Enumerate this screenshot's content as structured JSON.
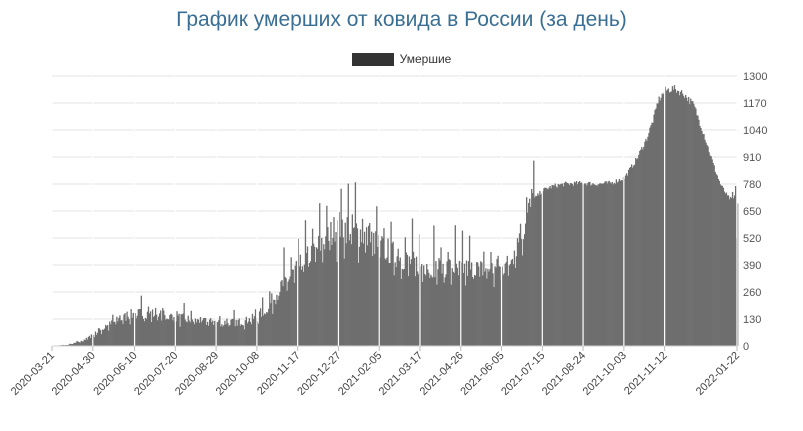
{
  "chart_data": {
    "type": "bar",
    "title": "График умерших от ковида в России (за день)",
    "series": [
      {
        "name": "Умершие",
        "color": "#6e6e6e",
        "legend_color": "#333333"
      }
    ],
    "ylim": [
      0,
      1300
    ],
    "yticks": [
      "1300",
      "1170",
      "1040",
      "910",
      "780",
      "650",
      "520",
      "390",
      "260",
      "130",
      "0"
    ],
    "yaxis_side": "right",
    "grid": true,
    "legend": "top-center",
    "x_range": [
      "2020-03-21",
      "2022-01-22"
    ],
    "xtick_labels": [
      "2020-03-21",
      "2020-04-30",
      "2020-06-10",
      "2020-07-20",
      "2020-08-29",
      "2020-10-08",
      "2020-11-17",
      "2020-12-27",
      "2021-02-05",
      "2021-03-17",
      "2021-04-26",
      "2021-06-05",
      "2021-07-15",
      "2021-08-24",
      "2021-10-03",
      "2021-11-12",
      "2022-01-22"
    ],
    "profile_dates": [
      "2020-03-21",
      "2020-04-05",
      "2020-04-20",
      "2020-05-05",
      "2020-05-20",
      "2020-06-05",
      "2020-06-20",
      "2020-07-10",
      "2020-07-25",
      "2020-08-10",
      "2020-08-25",
      "2020-09-10",
      "2020-09-25",
      "2020-10-08",
      "2020-10-20",
      "2020-11-01",
      "2020-11-17",
      "2020-12-01",
      "2020-12-15",
      "2020-12-27",
      "2021-01-05",
      "2021-01-15",
      "2021-01-25",
      "2021-02-05",
      "2021-02-20",
      "2021-03-05",
      "2021-03-17",
      "2021-04-01",
      "2021-04-15",
      "2021-04-26",
      "2021-05-10",
      "2021-05-25",
      "2021-06-05",
      "2021-06-12",
      "2021-06-20",
      "2021-06-28",
      "2021-07-05",
      "2021-07-15",
      "2021-07-25",
      "2021-08-05",
      "2021-08-24",
      "2021-09-05",
      "2021-09-20",
      "2021-10-03",
      "2021-10-15",
      "2021-10-25",
      "2021-11-01",
      "2021-11-05",
      "2021-11-12",
      "2021-11-20",
      "2021-11-30",
      "2021-12-10",
      "2021-12-20",
      "2021-12-30",
      "2022-01-05",
      "2022-01-12",
      "2022-01-17",
      "2022-01-22"
    ],
    "profile_values": [
      1,
      5,
      25,
      70,
      115,
      150,
      160,
      145,
      135,
      120,
      115,
      112,
      118,
      140,
      200,
      290,
      380,
      450,
      520,
      580,
      570,
      550,
      520,
      480,
      440,
      410,
      390,
      380,
      380,
      375,
      370,
      370,
      375,
      400,
      500,
      600,
      700,
      750,
      770,
      780,
      785,
      780,
      785,
      810,
      900,
      1000,
      1100,
      1180,
      1230,
      1240,
      1215,
      1160,
      1020,
      860,
      780,
      720,
      700,
      690
    ]
  }
}
